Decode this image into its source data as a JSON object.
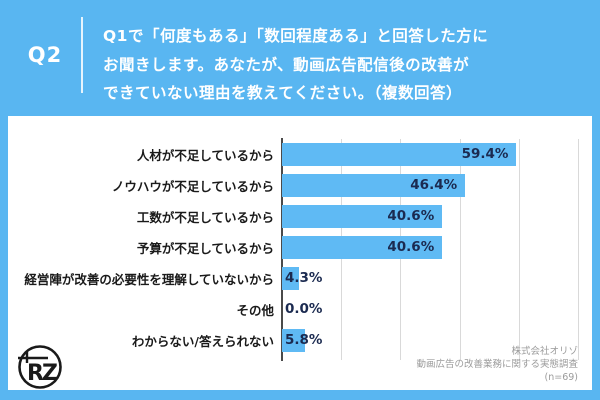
{
  "header": {
    "q_label": "Q2",
    "question_lines": [
      "Q1で「何度もある」「数回程度ある」と回答した方に",
      "お聞きします。あなたが、動画広告配信後の改善が",
      "できていない理由を教えてください。（複数回答）"
    ]
  },
  "chart_data": {
    "type": "bar",
    "orientation": "horizontal",
    "title": "",
    "xlabel": "",
    "ylabel": "",
    "categories": [
      "人材が不足しているから",
      "ノウハウが不足しているから",
      "工数が不足しているから",
      "予算が不足しているから",
      "経営陣が改善の必要性を理解していないから",
      "その他",
      "わからない/答えられない"
    ],
    "values": [
      59.4,
      46.4,
      40.6,
      40.6,
      4.3,
      0.0,
      5.8
    ],
    "value_labels": [
      "59.4%",
      "46.4%",
      "40.6%",
      "40.6%",
      "4.3%",
      "0.0%",
      "5.8%"
    ],
    "xlim": [
      0,
      75
    ],
    "gridlines": [
      15,
      30,
      45,
      60,
      75
    ],
    "grid": true,
    "legend": "none",
    "bar_color": "#5FBAF4",
    "value_label_color": "#1B2A50",
    "category_label_color": "#1a1a1a",
    "gridline_color": "#d9d9d9",
    "axis_color": "#4a4a4a"
  },
  "footer": {
    "company": "株式会社オリゾ",
    "survey": "動画広告の改善業務に関する実態調査",
    "sample": "(n=69)"
  },
  "colors": {
    "background_blue": "#59B6F1",
    "card_white": "#ffffff",
    "header_text": "#ffffff"
  },
  "icons": {
    "logo": "rz-monogram-logo"
  }
}
